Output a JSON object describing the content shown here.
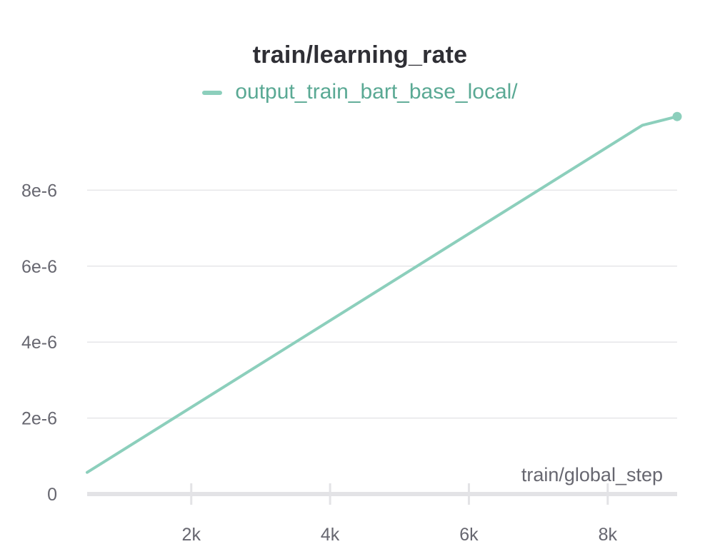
{
  "chart_data": {
    "type": "line",
    "title": "train/learning_rate",
    "xlabel": "train/global_step",
    "ylabel": "",
    "series": [
      {
        "name": "output_train_bart_base_local/",
        "color": "#8ccfbc",
        "x": [
          500,
          8500,
          9000
        ],
        "y": [
          5.7e-07,
          9.71e-06,
          9.94e-06
        ]
      }
    ],
    "xlim": [
      500,
      9000
    ],
    "ylim": [
      0,
      1e-05
    ],
    "x_ticks": [
      2000,
      4000,
      6000,
      8000
    ],
    "x_tick_labels": [
      "2k",
      "4k",
      "6k",
      "8k"
    ],
    "y_ticks": [
      0,
      2e-06,
      4e-06,
      6e-06,
      8e-06
    ],
    "y_tick_labels": [
      "0",
      "2e-6",
      "4e-6",
      "6e-6",
      "8e-6"
    ],
    "grid": true,
    "legend_position": "top-center",
    "end_marker": true
  }
}
